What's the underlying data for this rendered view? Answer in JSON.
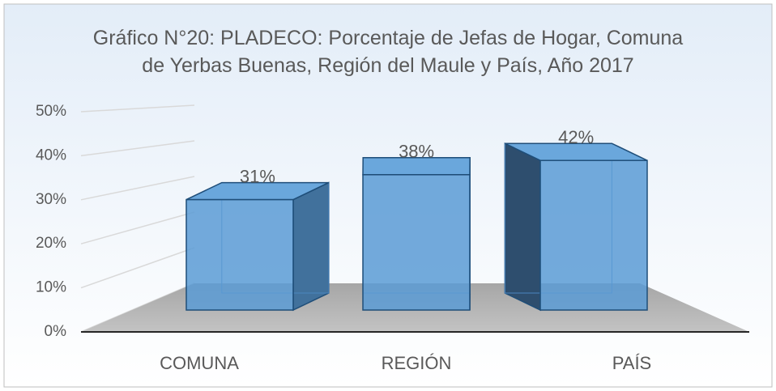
{
  "chart_data": {
    "type": "bar3d",
    "title": "Gráfico N°20: PLADECO: Porcentaje de Jefas de Hogar, Comuna de Yerbas Buenas, Región del Maule y País, Año 2017",
    "categories": [
      "COMUNA",
      "REGIÓN",
      "PAÍS"
    ],
    "values": [
      31,
      38,
      42
    ],
    "value_labels": [
      "31%",
      "38%",
      "42%"
    ],
    "color": "#5b9bd5",
    "ylim": [
      0,
      50
    ],
    "yticks": [
      {
        "value": 0,
        "label": "0%"
      },
      {
        "value": 10,
        "label": "10%"
      },
      {
        "value": 20,
        "label": "20%"
      },
      {
        "value": 30,
        "label": "30%"
      },
      {
        "value": 40,
        "label": "40%"
      },
      {
        "value": 50,
        "label": "50%"
      }
    ],
    "grid": true
  }
}
